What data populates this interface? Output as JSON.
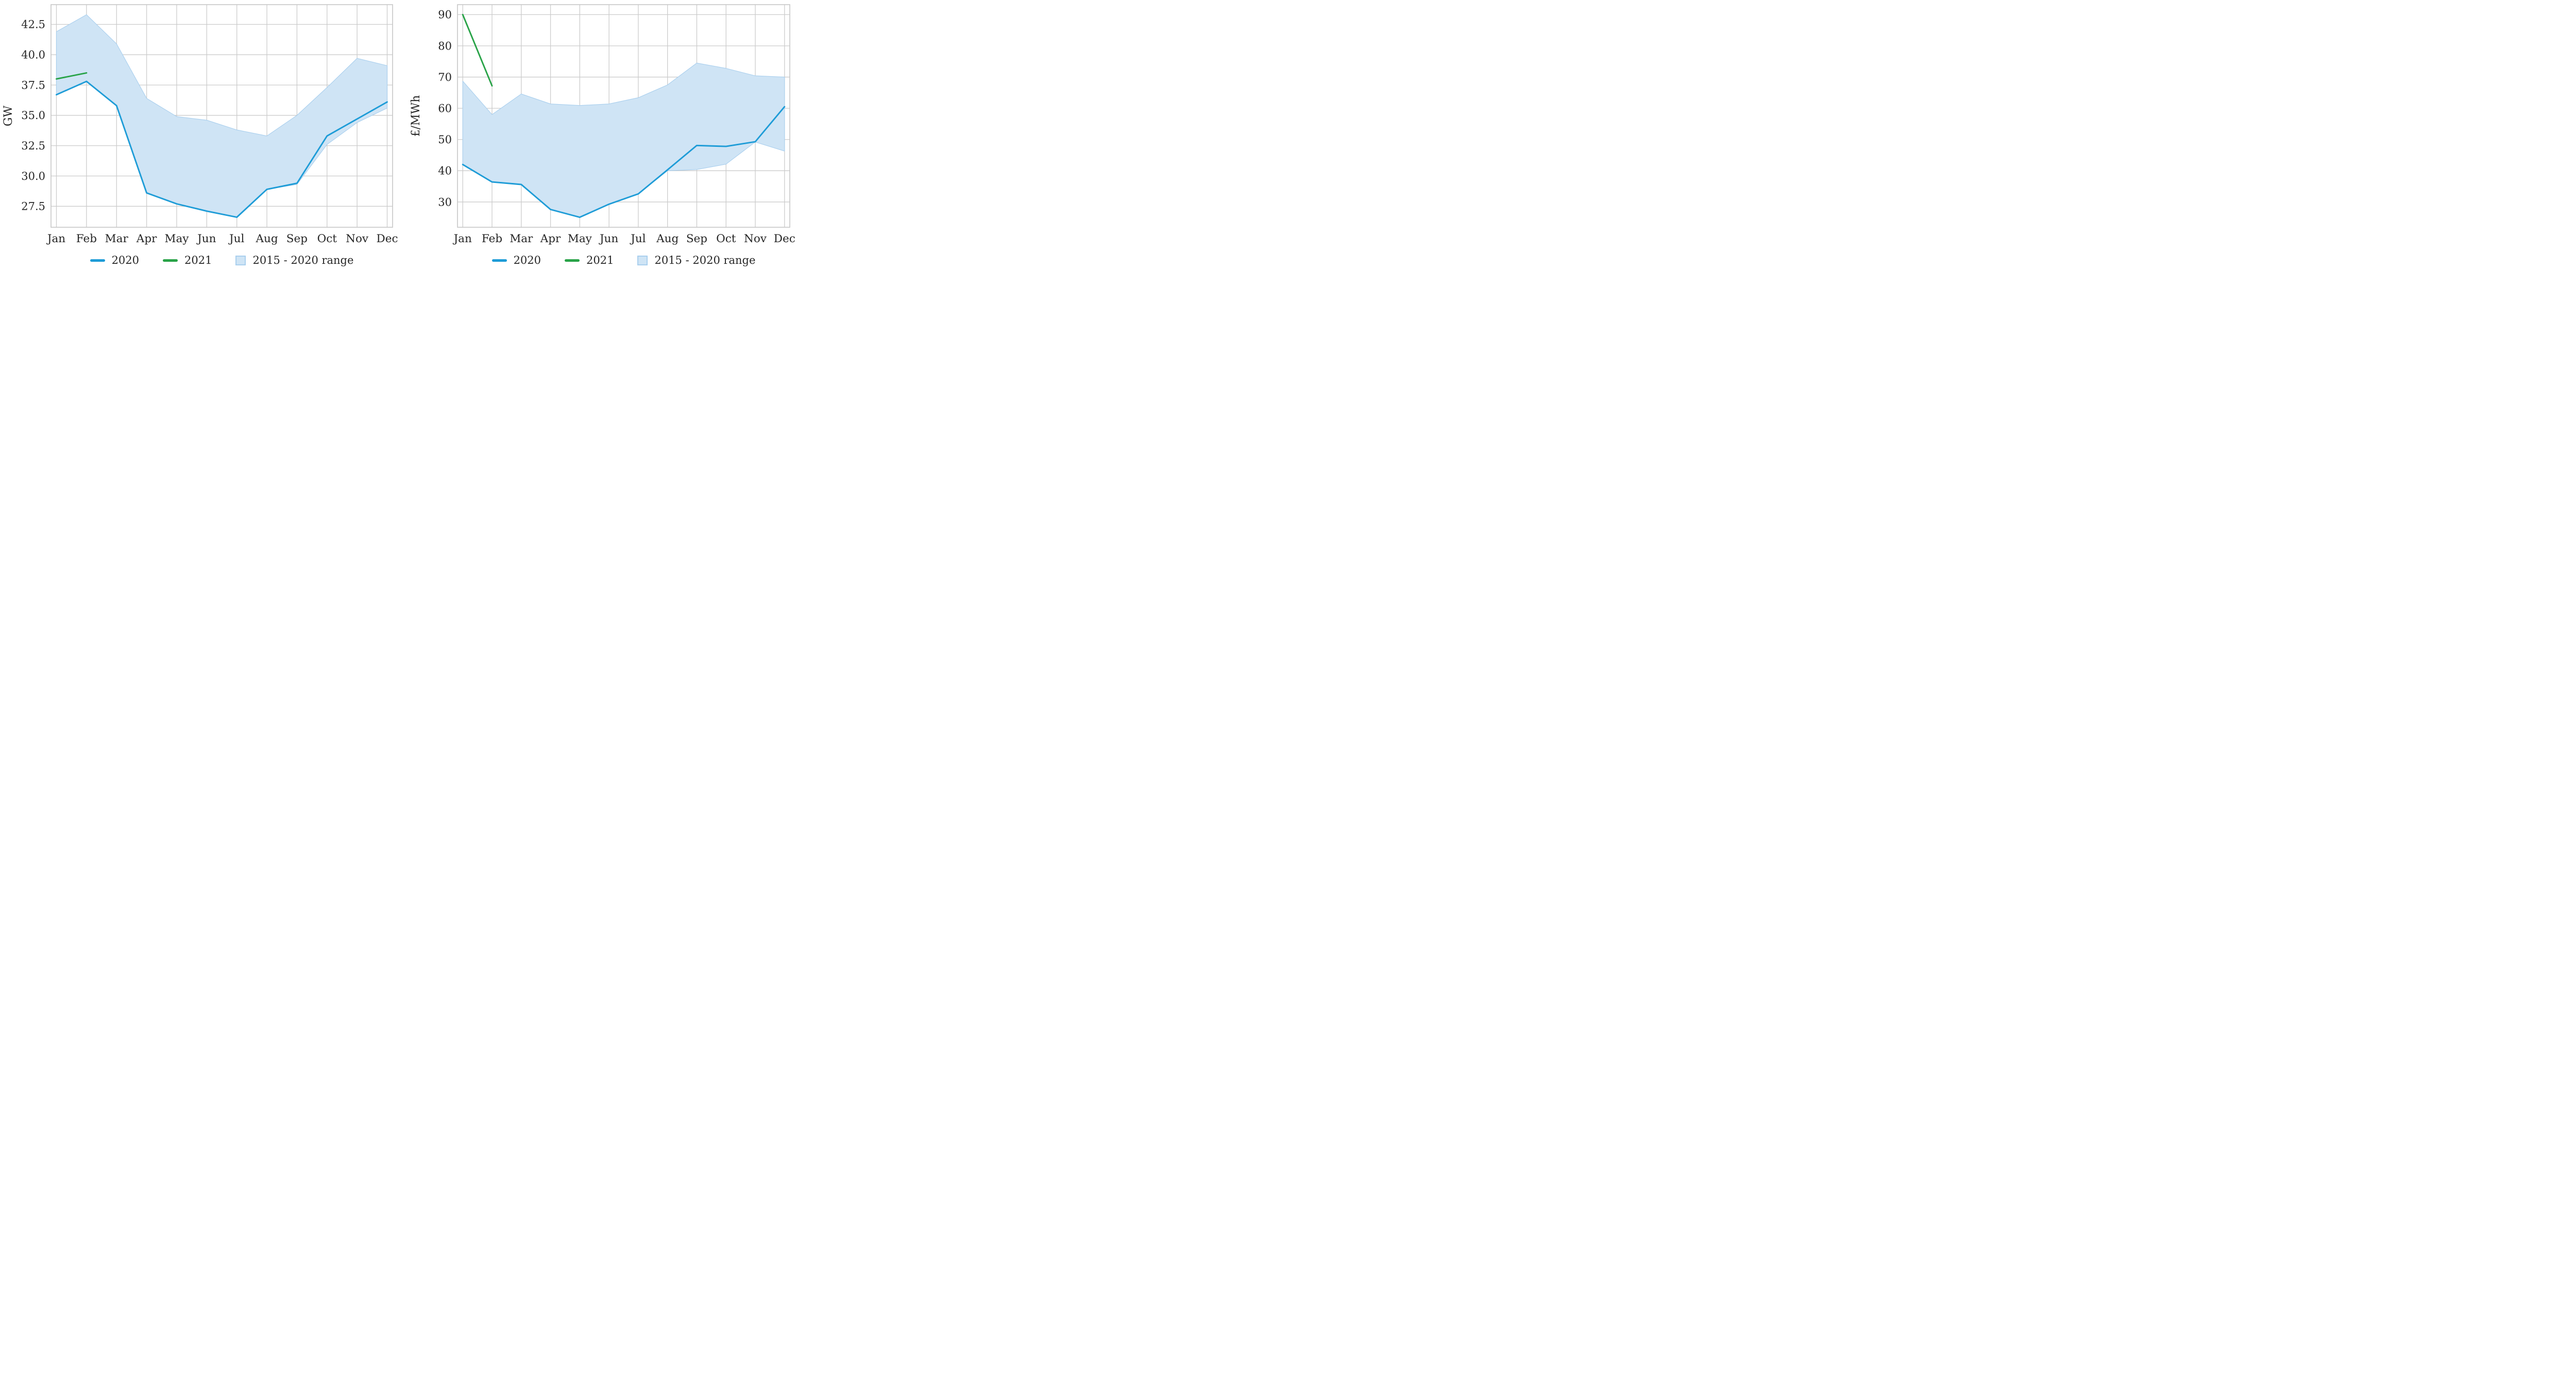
{
  "figure": {
    "background": "#ffffff",
    "text_color": "#262626",
    "grid_color": "#cccccc",
    "spine_color": "#c6c6c6"
  },
  "chart_data": [
    {
      "type": "line",
      "title": "",
      "xlabel": "",
      "ylabel": "GW",
      "categories": [
        "Jan",
        "Feb",
        "Mar",
        "Apr",
        "May",
        "Jun",
        "Jul",
        "Aug",
        "Sep",
        "Oct",
        "Nov",
        "Dec"
      ],
      "ylim": [
        25.77,
        44.13
      ],
      "xlim_pad_months": 0.18,
      "yticks": [
        27.5,
        30.0,
        32.5,
        35.0,
        37.5,
        40.0,
        42.5
      ],
      "ytick_labels": [
        "27.5",
        "30.0",
        "32.5",
        "35.0",
        "37.5",
        "40.0",
        "42.5"
      ],
      "grid": true,
      "legend_position": "bottom",
      "series": [
        {
          "name": "2020",
          "kind": "line",
          "color": "#1e9cd7",
          "x": [
            0,
            1,
            2,
            3,
            4,
            5,
            6,
            7,
            8,
            9,
            10,
            11
          ],
          "values": [
            36.7,
            37.8,
            35.8,
            28.6,
            27.7,
            27.1,
            26.6,
            28.9,
            29.4,
            33.3,
            34.7,
            36.1
          ]
        },
        {
          "name": "2021",
          "kind": "line",
          "color": "#29a348",
          "x": [
            0,
            1
          ],
          "values": [
            38.0,
            38.5
          ]
        },
        {
          "name": "2015 - 2020 range",
          "kind": "band",
          "fill": "#cfe4f5",
          "edge": "#a9cfee",
          "x": [
            0,
            1,
            2,
            3,
            4,
            5,
            6,
            7,
            8,
            9,
            10,
            11
          ],
          "upper": [
            41.9,
            43.3,
            40.9,
            36.4,
            34.9,
            34.6,
            33.8,
            33.3,
            35.0,
            37.3,
            39.7,
            39.1
          ],
          "lower": [
            36.7,
            37.8,
            35.8,
            28.6,
            27.7,
            27.1,
            26.6,
            28.9,
            29.3,
            32.6,
            34.4,
            35.6
          ]
        }
      ]
    },
    {
      "type": "line",
      "title": "",
      "xlabel": "",
      "ylabel": "£/MWh",
      "categories": [
        "Jan",
        "Feb",
        "Mar",
        "Apr",
        "May",
        "Jun",
        "Jul",
        "Aug",
        "Sep",
        "Oct",
        "Nov",
        "Dec"
      ],
      "ylim": [
        21.9,
        93.2
      ],
      "xlim_pad_months": 0.18,
      "yticks": [
        30,
        40,
        50,
        60,
        70,
        80,
        90
      ],
      "ytick_labels": [
        "30",
        "40",
        "50",
        "60",
        "70",
        "80",
        "90"
      ],
      "grid": true,
      "legend_position": "bottom",
      "series": [
        {
          "name": "2020",
          "kind": "line",
          "color": "#1e9cd7",
          "x": [
            0,
            1,
            2,
            3,
            4,
            5,
            6,
            7,
            8,
            9,
            10,
            11
          ],
          "values": [
            42.0,
            36.4,
            35.6,
            27.6,
            25.1,
            29.3,
            32.6,
            40.3,
            48.1,
            47.8,
            49.3,
            60.5
          ]
        },
        {
          "name": "2021",
          "kind": "line",
          "color": "#29a348",
          "x": [
            0,
            1
          ],
          "values": [
            90.0,
            67.2
          ]
        },
        {
          "name": "2015 - 2020 range",
          "kind": "band",
          "fill": "#cfe4f5",
          "edge": "#a9cfee",
          "x": [
            0,
            1,
            2,
            3,
            4,
            5,
            6,
            7,
            8,
            9,
            10,
            11
          ],
          "upper": [
            68.7,
            58.0,
            64.6,
            61.4,
            60.9,
            61.4,
            63.4,
            67.5,
            74.5,
            72.8,
            70.4,
            70.0
          ],
          "lower": [
            42.0,
            36.4,
            35.6,
            27.6,
            25.1,
            29.3,
            32.6,
            40.0,
            40.4,
            42.1,
            49.2,
            46.3
          ]
        }
      ]
    }
  ]
}
